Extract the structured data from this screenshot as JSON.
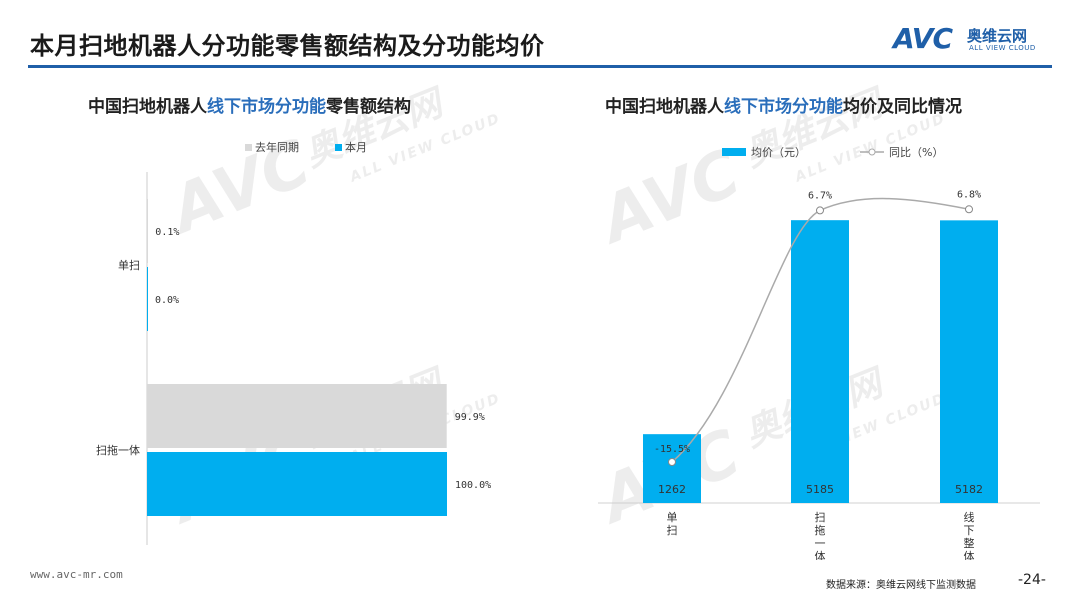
{
  "header": {
    "title": "本月扫地机器人分功能零售额结构及分功能均价",
    "logo_text": "AVC",
    "logo_cn": "奥维云网",
    "logo_en": "ALL VIEW CLOUD"
  },
  "colors": {
    "accent": "#1f5fa8",
    "current": "#00aeef",
    "last_year": "#d9d9d9",
    "line": "#aaaaaa"
  },
  "left_chart": {
    "title_prefix": "中国扫地机器人",
    "title_highlight": "线下市场分功能",
    "title_suffix": "零售额结构"
  },
  "right_chart": {
    "title_prefix": "中国扫地机器人",
    "title_highlight": "线下市场分功能",
    "title_suffix": "均价及同比情况"
  },
  "chart_data": [
    {
      "type": "bar",
      "orientation": "horizontal",
      "categories": [
        "单扫",
        "扫拖一体"
      ],
      "series": [
        {
          "name": "去年同期",
          "values": [
            0.1,
            99.9
          ],
          "labels": [
            "0.1%",
            "99.9%"
          ],
          "color": "#d9d9d9"
        },
        {
          "name": "本月",
          "values": [
            0.0,
            100.0
          ],
          "labels": [
            "0.0%",
            "100.0%"
          ],
          "color": "#00aeef"
        }
      ],
      "xlim": [
        0,
        100
      ],
      "legend": "top"
    },
    {
      "type": "bar",
      "categories": [
        "单扫",
        "扫拖一体",
        "线下整体"
      ],
      "category_labels_vertical": [
        [
          "单",
          "扫"
        ],
        [
          "扫",
          "拖",
          "一",
          "体"
        ],
        [
          "线",
          "下",
          "整",
          "体"
        ]
      ],
      "series": [
        {
          "name": "均价（元）",
          "type": "bar",
          "values": [
            1262,
            5185,
            5182
          ],
          "labels": [
            "1262",
            "5185",
            "5182"
          ],
          "color": "#00aeef"
        },
        {
          "name": "同比（%）",
          "type": "line",
          "values": [
            -15.5,
            6.7,
            6.8
          ],
          "labels": [
            "-15.5%",
            "6.7%",
            "6.8%"
          ],
          "color": "#aaaaaa"
        }
      ],
      "ylim": [
        0,
        5500
      ],
      "y2lim": [
        -20,
        10
      ],
      "legend": "top"
    }
  ],
  "footer": {
    "url": "www.avc-mr.com",
    "source": "数据来源：奥维云网线下监测数据",
    "page": "-24-"
  },
  "watermark": {
    "big": "AVC",
    "cn": "奥维云网",
    "en": "ALL VIEW CLOUD"
  }
}
